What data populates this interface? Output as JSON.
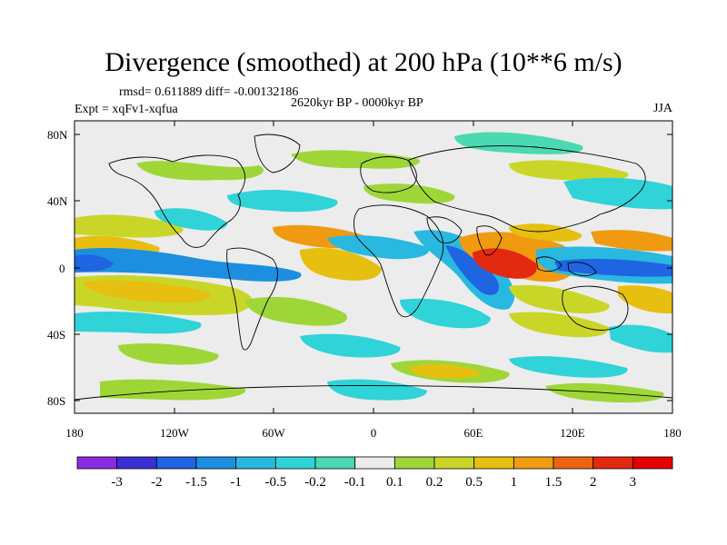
{
  "title": "Divergence (smoothed) at 200 hPa (10**6 m/s)",
  "stats": "rmsd= 0.611889 diff= -0.00132186",
  "experiment": "Expt = xqFv1-xqfua",
  "period": "2620kyr BP - 0000kyr BP",
  "season": "JJA",
  "lat_labels": [
    "80N",
    "40N",
    "0",
    "40S",
    "80S"
  ],
  "lon_labels": [
    "180",
    "120W",
    "60W",
    "0",
    "60E",
    "120E",
    "180"
  ],
  "colorbar": {
    "labels": [
      "-3",
      "-2",
      "-1.5",
      "-1",
      "-0.5",
      "-0.2",
      "-0.1",
      "0.1",
      "0.2",
      "0.5",
      "1",
      "1.5",
      "2",
      "3"
    ],
    "colors": [
      "#8a2be2",
      "#3a2fd0",
      "#1f64e0",
      "#1c8fe0",
      "#28b8e0",
      "#2fd3d8",
      "#4ad9b0",
      "#ececec",
      "#9ed638",
      "#c9d628",
      "#e6bf10",
      "#ef9a10",
      "#ec6410",
      "#e22a10",
      "#e30000"
    ]
  },
  "palette": {
    "neutral": "#ececec",
    "coastline": "#000000"
  }
}
